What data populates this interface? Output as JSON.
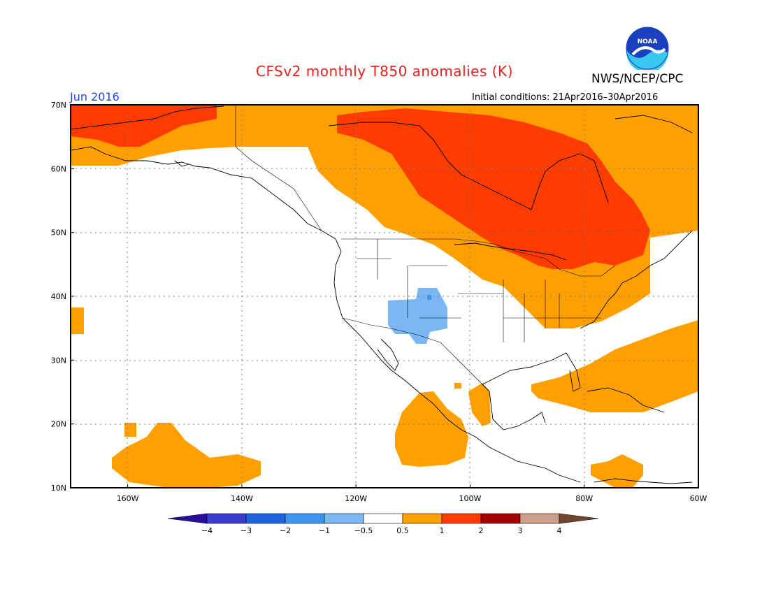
{
  "title": "CFSv2 monthly T850 anomalies (K)",
  "agency": "NWS/NCEP/CPC",
  "logo_text": "NOAA",
  "valid_month": "Jun 2016",
  "initial_conditions": "Initial conditions: 21Apr2016–30Apr2016",
  "map": {
    "lon_range": [
      -170,
      -60
    ],
    "lat_range": [
      10,
      70
    ],
    "lat_labels": [
      "10N",
      "20N",
      "30N",
      "40N",
      "50N",
      "60N",
      "70N"
    ],
    "lon_labels": [
      "160W",
      "140W",
      "120W",
      "100W",
      "80W",
      "60W"
    ],
    "lat_values": [
      10,
      20,
      30,
      40,
      50,
      60,
      70
    ],
    "lon_values": [
      -160,
      -140,
      -120,
      -100,
      -80,
      -60
    ]
  },
  "colorbar": {
    "labels": [
      "−4",
      "−3",
      "−2",
      "−1",
      "−0.5",
      "0.5",
      "1",
      "2",
      "3",
      "4"
    ],
    "colors": [
      "#2a0ea0",
      "#3c3ccf",
      "#1e64dc",
      "#3c96f0",
      "#7ab8f5",
      "#ffffff",
      "#ffa000",
      "#ff3c00",
      "#a50000",
      "#cda08c",
      "#734632"
    ]
  },
  "anomaly_colors": {
    "plus_0_5_to_1": "#ffa000",
    "plus_1_to_2": "#ff3c00",
    "minus_0_5_to_1": "#7ab8f5"
  }
}
